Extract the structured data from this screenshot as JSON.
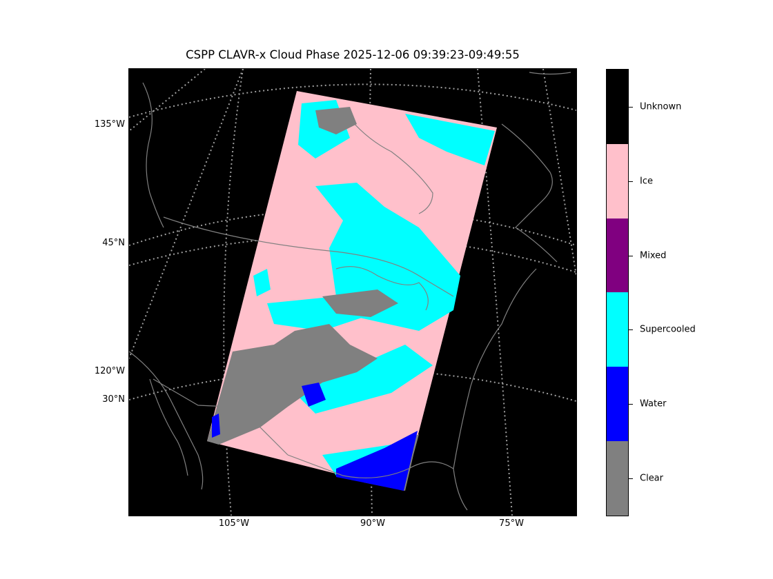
{
  "title": "CSPP CLAVR-x Cloud Phase 2025-12-06 09:39:23-09:49:55",
  "map": {
    "projection_note_visible": false,
    "latitude_labels": [
      "135°W",
      "45°N",
      "120°W",
      "30°N"
    ],
    "longitude_labels": [
      "105°W",
      "90°W",
      "75°W"
    ]
  },
  "colorbar": {
    "categories": [
      {
        "label": "Unknown",
        "color": "#000000"
      },
      {
        "label": "Ice",
        "color": "#ffc0cb"
      },
      {
        "label": "Mixed",
        "color": "#800080"
      },
      {
        "label": "Supercooled",
        "color": "#00ffff"
      },
      {
        "label": "Water",
        "color": "#0000ff"
      },
      {
        "label": "Clear",
        "color": "#808080"
      }
    ]
  },
  "colors": {
    "background": "#000000",
    "coastline": "#808080",
    "gridline": "#9e9e9e"
  }
}
